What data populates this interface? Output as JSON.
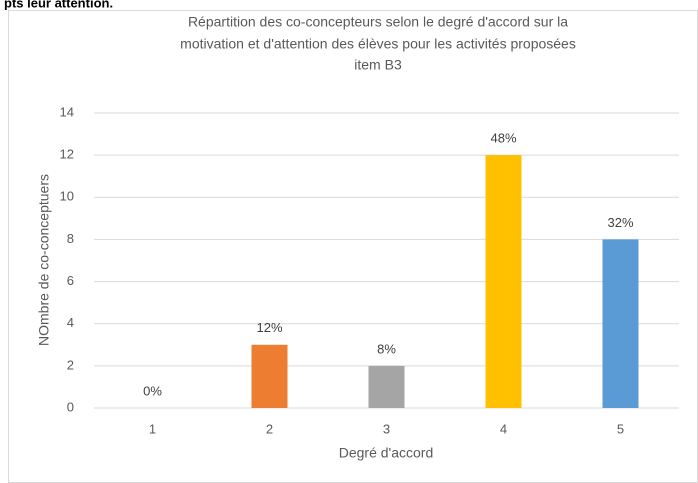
{
  "caption": "pts leur attention.",
  "chart_data": {
    "type": "bar",
    "title": [
      "Répartition des co-concepteurs selon le degré d'accord sur la",
      "motivation et d'attention des élèves pour les activités proposées",
      "item B3"
    ],
    "x_label": "Degré d'accord",
    "y_label": "NOmbre de co-conceptuers",
    "categories": [
      "1",
      "2",
      "3",
      "4",
      "5"
    ],
    "values": [
      0,
      3,
      2,
      12,
      8
    ],
    "value_labels": [
      "0%",
      "12%",
      "8%",
      "48%",
      "32%"
    ],
    "colors": [
      "#5b9bd5",
      "#ed7d31",
      "#a5a5a5",
      "#ffc000",
      "#5b9bd5"
    ],
    "ylim": [
      0,
      14
    ],
    "yticks": [
      0,
      2,
      4,
      6,
      8,
      10,
      12,
      14
    ],
    "grid": true
  }
}
